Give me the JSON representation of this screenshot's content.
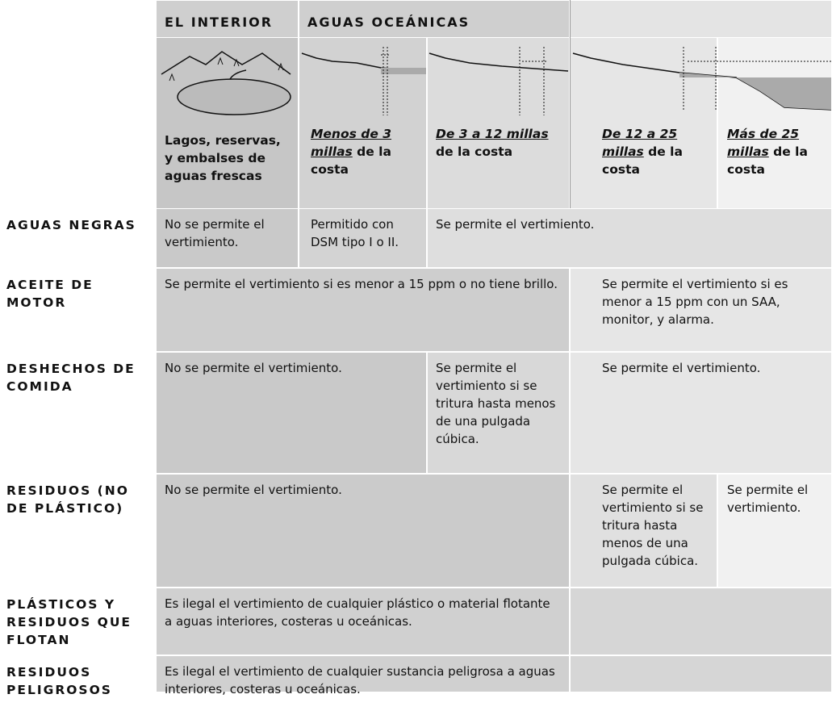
{
  "header": {
    "columns": [
      "EL INTERIOR",
      "AGUAS OCEÁNICAS"
    ]
  },
  "zones": [
    {
      "text": "Lagos, reservas, y embalses de aguas frescas"
    },
    {
      "emphasis": "Menos de 3 millas",
      "rest": " de la costa"
    },
    {
      "emphasis": "De 3 a 12 millas",
      "rest": " de la costa"
    },
    {
      "emphasis": "De 12 a 25 millas",
      "rest": " de la costa"
    },
    {
      "emphasis": "Más de 25 millas",
      "rest": " de la costa"
    }
  ],
  "rows": [
    {
      "label": "AGUAS NEGRAS",
      "cells": [
        "No se permite el vertimiento.",
        "Permitido con DSM tipo I o II.",
        "Se permite el vertimiento."
      ]
    },
    {
      "label": "ACEITE DE MOTOR",
      "cells": [
        "Se permite el vertimiento si es menor a 15 ppm o no tiene brillo.",
        "Se permite el vertimiento si es menor a 15 ppm con un SAA, monitor, y alarma."
      ]
    },
    {
      "label": "DESHECHOS DE COMIDA",
      "cells": [
        "No se permite el vertimiento.",
        "Se permite el vertimiento si se tritura hasta menos de una pulgada cúbica.",
        "Se permite el vertimiento."
      ]
    },
    {
      "label": "RESIDUOS (NO DE PLÁSTICO)",
      "cells": [
        "No se permite el vertimiento.",
        "Se permite el vertimiento si se tritura hasta menos de una pulgada cúbica.",
        "Se permite el vertimiento."
      ]
    },
    {
      "label": "PLÁSTICOS Y RESIDUOS QUE FLOTAN",
      "cells": [
        "Es ilegal el vertimiento de cualquier plástico o material flotante a aguas interiores, costeras u oceánicas."
      ]
    },
    {
      "label": "RESIDUOS PELIGROSOS",
      "cells": [
        "Es ilegal el vertimiento de cualquier sustancia peligrosa a aguas interiores, costeras u oceánicas."
      ]
    }
  ]
}
